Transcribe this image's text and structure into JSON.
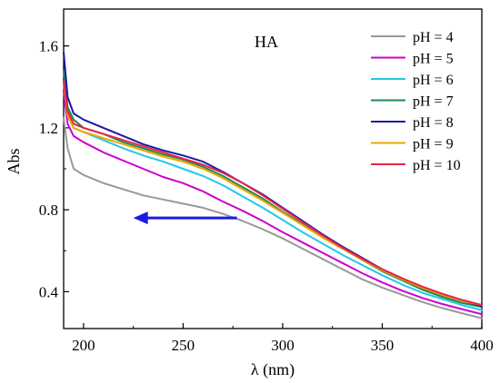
{
  "chart_data": {
    "type": "line",
    "annotation": "HA",
    "xlabel": "λ (nm)",
    "ylabel": "Abs",
    "xlim": [
      190,
      400
    ],
    "ylim": [
      0.22,
      1.78
    ],
    "xticks": [
      200,
      250,
      300,
      350,
      400
    ],
    "yticks": [
      0.4,
      0.8,
      1.2,
      1.6
    ],
    "xtick_labels": [
      "200",
      "250",
      "300",
      "350",
      "400"
    ],
    "ytick_labels": [
      "0.4",
      "0.8",
      "1.2",
      "1.6"
    ],
    "grid": false,
    "legend_position": "top-right",
    "arrow": {
      "from": [
        277,
        0.76
      ],
      "to": [
        225,
        0.76
      ],
      "color": "#1a1ae6",
      "direction": "left"
    },
    "x": [
      190,
      192,
      195,
      200,
      210,
      220,
      230,
      240,
      250,
      260,
      270,
      280,
      290,
      300,
      310,
      320,
      330,
      340,
      350,
      360,
      370,
      380,
      390,
      400
    ],
    "series": [
      {
        "name": "pH = 4",
        "color": "#999999",
        "values": [
          1.25,
          1.1,
          1.0,
          0.97,
          0.93,
          0.9,
          0.87,
          0.85,
          0.83,
          0.81,
          0.78,
          0.745,
          0.705,
          0.66,
          0.61,
          0.56,
          0.51,
          0.46,
          0.42,
          0.385,
          0.35,
          0.32,
          0.295,
          0.27
        ]
      },
      {
        "name": "pH = 5",
        "color": "#cc00cc",
        "values": [
          1.38,
          1.22,
          1.16,
          1.13,
          1.08,
          1.04,
          1.0,
          0.96,
          0.93,
          0.89,
          0.84,
          0.795,
          0.745,
          0.69,
          0.64,
          0.59,
          0.54,
          0.49,
          0.445,
          0.405,
          0.37,
          0.34,
          0.315,
          0.29
        ]
      },
      {
        "name": "pH = 6",
        "color": "#22c8e8",
        "values": [
          1.42,
          1.26,
          1.2,
          1.18,
          1.14,
          1.1,
          1.065,
          1.035,
          1.0,
          0.965,
          0.92,
          0.865,
          0.81,
          0.75,
          0.69,
          0.635,
          0.58,
          0.53,
          0.48,
          0.435,
          0.395,
          0.365,
          0.335,
          0.31
        ]
      },
      {
        "name": "pH = 7",
        "color": "#1e8a50",
        "values": [
          1.48,
          1.3,
          1.24,
          1.2,
          1.17,
          1.13,
          1.1,
          1.07,
          1.045,
          1.01,
          0.965,
          0.91,
          0.855,
          0.79,
          0.73,
          0.665,
          0.61,
          0.555,
          0.5,
          0.455,
          0.41,
          0.375,
          0.345,
          0.325
        ]
      },
      {
        "name": "pH = 8",
        "color": "#1a1aa8",
        "values": [
          1.57,
          1.35,
          1.27,
          1.24,
          1.2,
          1.16,
          1.12,
          1.09,
          1.065,
          1.035,
          0.985,
          0.93,
          0.875,
          0.81,
          0.745,
          0.68,
          0.62,
          0.565,
          0.51,
          0.465,
          0.42,
          0.385,
          0.355,
          0.33
        ]
      },
      {
        "name": "pH = 9",
        "color": "#e8a800",
        "values": [
          1.42,
          1.26,
          1.2,
          1.18,
          1.15,
          1.12,
          1.09,
          1.06,
          1.035,
          1.0,
          0.955,
          0.9,
          0.845,
          0.785,
          0.725,
          0.665,
          0.61,
          0.555,
          0.505,
          0.46,
          0.42,
          0.385,
          0.355,
          0.335
        ]
      },
      {
        "name": "pH = 10",
        "color": "#ee2244",
        "values": [
          1.43,
          1.28,
          1.22,
          1.2,
          1.17,
          1.14,
          1.11,
          1.08,
          1.05,
          1.02,
          0.98,
          0.93,
          0.87,
          0.805,
          0.74,
          0.675,
          0.615,
          0.56,
          0.51,
          0.465,
          0.425,
          0.39,
          0.36,
          0.335
        ]
      }
    ]
  }
}
